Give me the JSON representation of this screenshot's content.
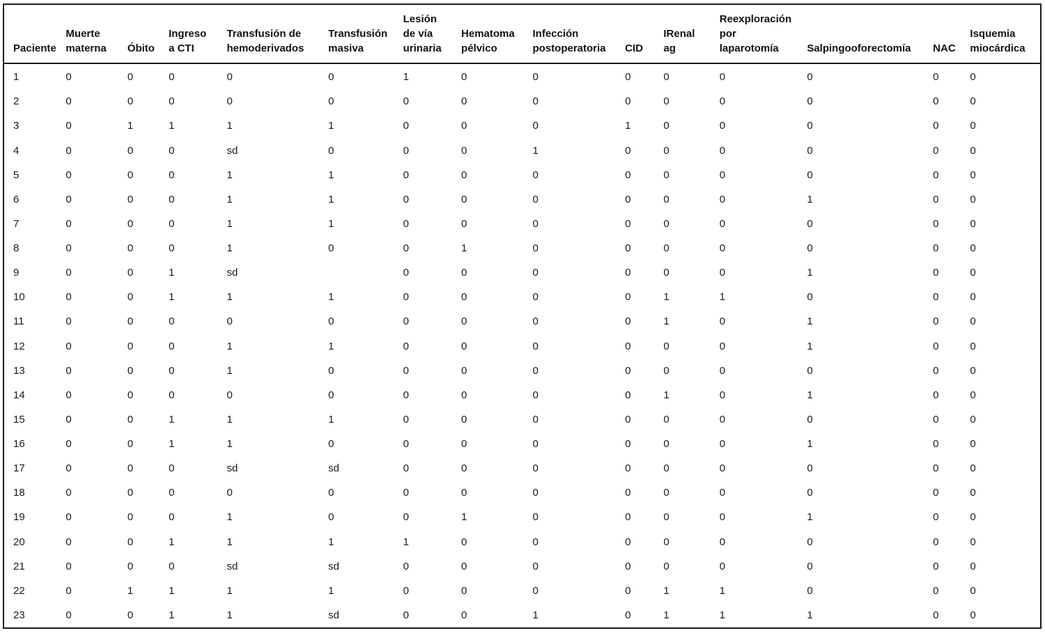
{
  "table": {
    "columns": [
      {
        "label": "Paciente"
      },
      {
        "label": "Muerte\nmaterna"
      },
      {
        "label": "Óbito"
      },
      {
        "label": "Ingreso\na CTI"
      },
      {
        "label": "Transfusión de\nhemoderivados"
      },
      {
        "label": "Transfusión\nmasiva"
      },
      {
        "label": "Lesión\nde vía\nurinaria"
      },
      {
        "label": "Hematoma\npélvico"
      },
      {
        "label": "Infección\npostoperatoria"
      },
      {
        "label": "CID"
      },
      {
        "label": "IRenal\nag"
      },
      {
        "label": "Reexploración\npor\nlaparotomía"
      },
      {
        "label": "Salpingooforectomía"
      },
      {
        "label": "NAC"
      },
      {
        "label": "Isquemia\nmiocárdica"
      }
    ],
    "rows": [
      [
        "1",
        "0",
        "0",
        "0",
        "0",
        "0",
        "1",
        "0",
        "0",
        "0",
        "0",
        "0",
        "0",
        "0",
        "0"
      ],
      [
        "2",
        "0",
        "0",
        "0",
        "0",
        "0",
        "0",
        "0",
        "0",
        "0",
        "0",
        "0",
        "0",
        "0",
        "0"
      ],
      [
        "3",
        "0",
        "1",
        "1",
        "1",
        "1",
        "0",
        "0",
        "0",
        "1",
        "0",
        "0",
        "0",
        "0",
        "0"
      ],
      [
        "4",
        "0",
        "0",
        "0",
        "sd",
        "0",
        "0",
        "0",
        "1",
        "0",
        "0",
        "0",
        "0",
        "0",
        "0"
      ],
      [
        "5",
        "0",
        "0",
        "0",
        "1",
        "1",
        "0",
        "0",
        "0",
        "0",
        "0",
        "0",
        "0",
        "0",
        "0"
      ],
      [
        "6",
        "0",
        "0",
        "0",
        "1",
        "1",
        "0",
        "0",
        "0",
        "0",
        "0",
        "0",
        "1",
        "0",
        "0"
      ],
      [
        "7",
        "0",
        "0",
        "0",
        "1",
        "1",
        "0",
        "0",
        "0",
        "0",
        "0",
        "0",
        "0",
        "0",
        "0"
      ],
      [
        "8",
        "0",
        "0",
        "0",
        "1",
        "0",
        "0",
        "1",
        "0",
        "0",
        "0",
        "0",
        "0",
        "0",
        "0"
      ],
      [
        "9",
        "0",
        "0",
        "1",
        "sd",
        "",
        "0",
        "0",
        "0",
        "0",
        "0",
        "0",
        "1",
        "0",
        "0"
      ],
      [
        "10",
        "0",
        "0",
        "1",
        "1",
        "1",
        "0",
        "0",
        "0",
        "0",
        "1",
        "1",
        "0",
        "0",
        "0"
      ],
      [
        "11",
        "0",
        "0",
        "0",
        "0",
        "0",
        "0",
        "0",
        "0",
        "0",
        "1",
        "0",
        "1",
        "0",
        "0"
      ],
      [
        "12",
        "0",
        "0",
        "0",
        "1",
        "1",
        "0",
        "0",
        "0",
        "0",
        "0",
        "0",
        "1",
        "0",
        "0"
      ],
      [
        "13",
        "0",
        "0",
        "0",
        "1",
        "0",
        "0",
        "0",
        "0",
        "0",
        "0",
        "0",
        "0",
        "0",
        "0"
      ],
      [
        "14",
        "0",
        "0",
        "0",
        "0",
        "0",
        "0",
        "0",
        "0",
        "0",
        "1",
        "0",
        "1",
        "0",
        "0"
      ],
      [
        "15",
        "0",
        "0",
        "1",
        "1",
        "1",
        "0",
        "0",
        "0",
        "0",
        "0",
        "0",
        "0",
        "0",
        "0"
      ],
      [
        "16",
        "0",
        "0",
        "1",
        "1",
        "0",
        "0",
        "0",
        "0",
        "0",
        "0",
        "0",
        "1",
        "0",
        "0"
      ],
      [
        "17",
        "0",
        "0",
        "0",
        "sd",
        "sd",
        "0",
        "0",
        "0",
        "0",
        "0",
        "0",
        "0",
        "0",
        "0"
      ],
      [
        "18",
        "0",
        "0",
        "0",
        "0",
        "0",
        "0",
        "0",
        "0",
        "0",
        "0",
        "0",
        "0",
        "0",
        "0"
      ],
      [
        "19",
        "0",
        "0",
        "0",
        "1",
        "0",
        "0",
        "1",
        "0",
        "0",
        "0",
        "0",
        "1",
        "0",
        "0"
      ],
      [
        "20",
        "0",
        "0",
        "1",
        "1",
        "1",
        "1",
        "0",
        "0",
        "0",
        "0",
        "0",
        "0",
        "0",
        "0"
      ],
      [
        "21",
        "0",
        "0",
        "0",
        "sd",
        "sd",
        "0",
        "0",
        "0",
        "0",
        "0",
        "0",
        "0",
        "0",
        "0"
      ],
      [
        "22",
        "0",
        "1",
        "1",
        "1",
        "1",
        "0",
        "0",
        "0",
        "0",
        "1",
        "1",
        "0",
        "0",
        "0"
      ],
      [
        "23",
        "0",
        "0",
        "1",
        "1",
        "sd",
        "0",
        "0",
        "1",
        "0",
        "1",
        "1",
        "1",
        "0",
        "0"
      ]
    ]
  }
}
